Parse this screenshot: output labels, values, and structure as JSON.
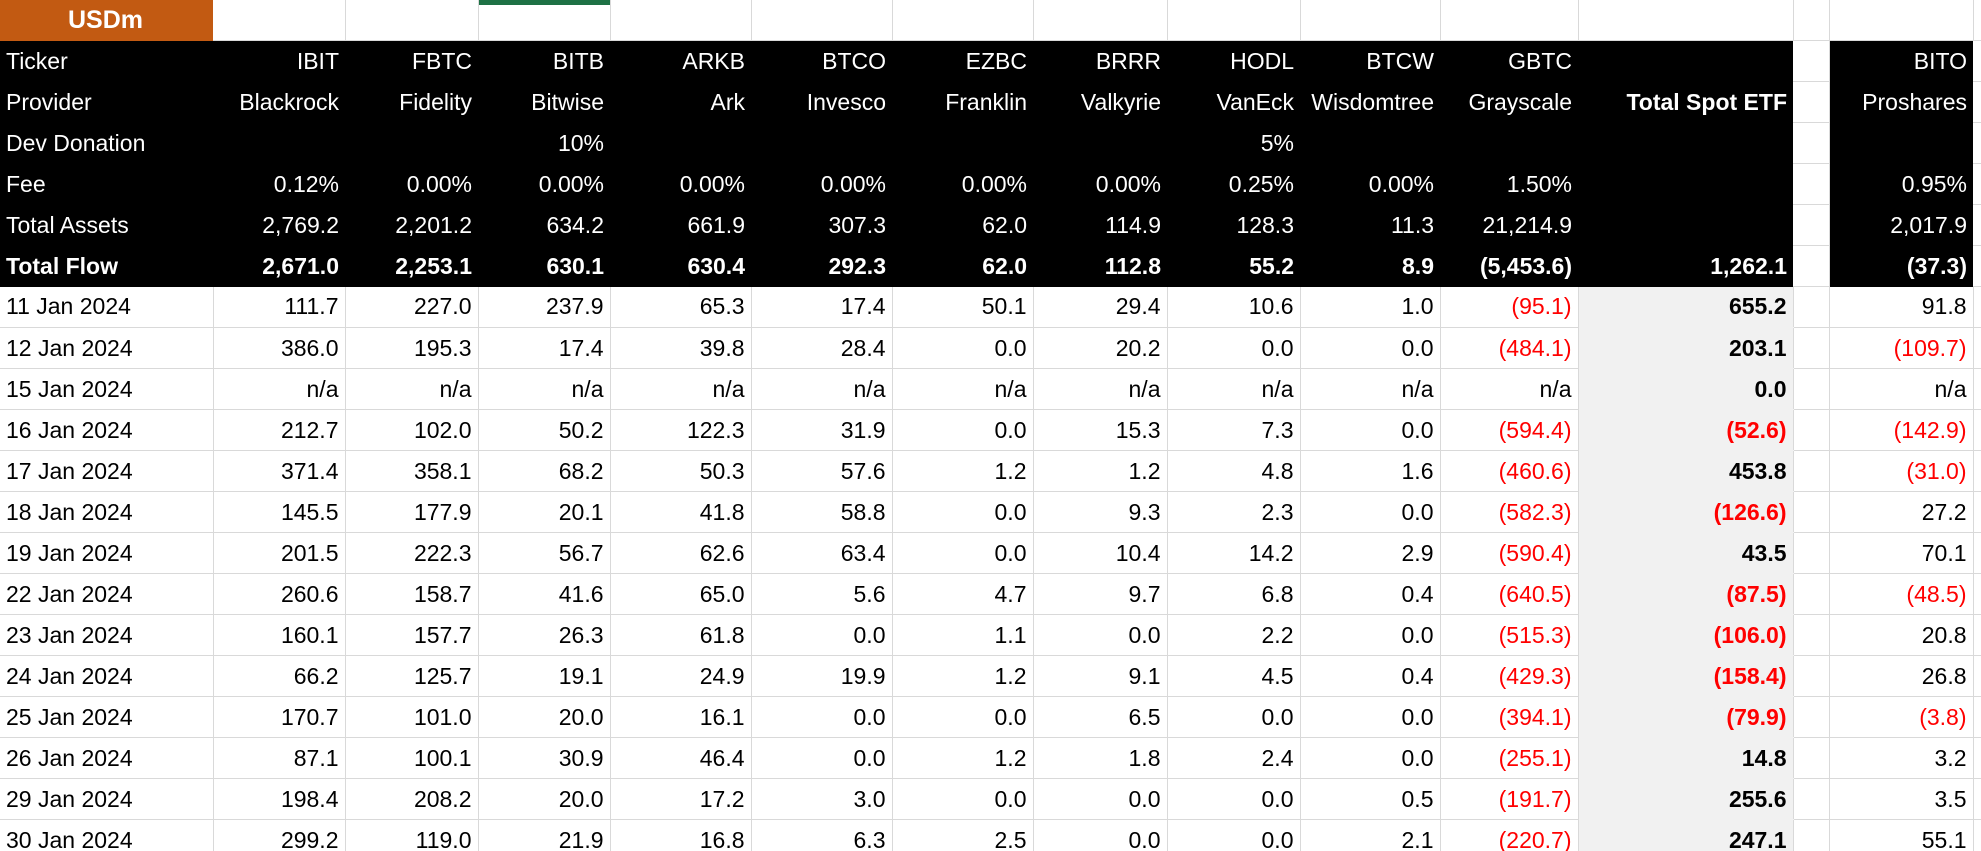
{
  "sheet": {
    "unit_label": "USDm",
    "row_labels": {
      "ticker": "Ticker",
      "provider": "Provider",
      "dev_donation": "Dev Donation",
      "fee": "Fee",
      "total_assets": "Total Assets",
      "total_flow": "Total Flow"
    },
    "columns": [
      {
        "ticker": "IBIT",
        "provider": "Blackrock",
        "dev_donation": "",
        "fee": "0.12%",
        "total_assets": "2,769.2",
        "total_flow": "2,671.0"
      },
      {
        "ticker": "FBTC",
        "provider": "Fidelity",
        "dev_donation": "",
        "fee": "0.00%",
        "total_assets": "2,201.2",
        "total_flow": "2,253.1"
      },
      {
        "ticker": "BITB",
        "provider": "Bitwise",
        "dev_donation": "10%",
        "fee": "0.00%",
        "total_assets": "634.2",
        "total_flow": "630.1"
      },
      {
        "ticker": "ARKB",
        "provider": "Ark",
        "dev_donation": "",
        "fee": "0.00%",
        "total_assets": "661.9",
        "total_flow": "630.4"
      },
      {
        "ticker": "BTCO",
        "provider": "Invesco",
        "dev_donation": "",
        "fee": "0.00%",
        "total_assets": "307.3",
        "total_flow": "292.3"
      },
      {
        "ticker": "EZBC",
        "provider": "Franklin",
        "dev_donation": "",
        "fee": "0.00%",
        "total_assets": "62.0",
        "total_flow": "62.0"
      },
      {
        "ticker": "BRRR",
        "provider": "Valkyrie",
        "dev_donation": "",
        "fee": "0.00%",
        "total_assets": "114.9",
        "total_flow": "112.8"
      },
      {
        "ticker": "HODL",
        "provider": "VanEck",
        "dev_donation": "5%",
        "fee": "0.25%",
        "total_assets": "128.3",
        "total_flow": "55.2"
      },
      {
        "ticker": "BTCW",
        "provider": "Wisdomtree",
        "dev_donation": "",
        "fee": "0.00%",
        "total_assets": "11.3",
        "total_flow": "8.9"
      },
      {
        "ticker": "GBTC",
        "provider": "Grayscale",
        "dev_donation": "",
        "fee": "1.50%",
        "total_assets": "21,214.9",
        "total_flow": "(5,453.6)"
      },
      {
        "ticker": "",
        "provider": "Total Spot ETF",
        "dev_donation": "",
        "fee": "",
        "total_assets": "",
        "total_flow": "1,262.1"
      },
      {
        "ticker": "BITO",
        "provider": "Proshares",
        "dev_donation": "",
        "fee": "0.95%",
        "total_assets": "2,017.9",
        "total_flow": "(37.3)"
      }
    ],
    "daily_rows": [
      {
        "date": "11 Jan 2024",
        "values": [
          "111.7",
          "227.0",
          "237.9",
          "65.3",
          "17.4",
          "50.1",
          "29.4",
          "10.6",
          "1.0",
          "(95.1)",
          "655.2",
          "91.8"
        ],
        "green_corner": true
      },
      {
        "date": "12 Jan 2024",
        "values": [
          "386.0",
          "195.3",
          "17.4",
          "39.8",
          "28.4",
          "0.0",
          "20.2",
          "0.0",
          "0.0",
          "(484.1)",
          "203.1",
          "(109.7)"
        ],
        "green_corner": true
      },
      {
        "date": "15 Jan 2024",
        "values": [
          "n/a",
          "n/a",
          "n/a",
          "n/a",
          "n/a",
          "n/a",
          "n/a",
          "n/a",
          "n/a",
          "n/a",
          "0.0",
          "n/a"
        ],
        "green_corner": false
      },
      {
        "date": "16 Jan 2024",
        "values": [
          "212.7",
          "102.0",
          "50.2",
          "122.3",
          "31.9",
          "0.0",
          "15.3",
          "7.3",
          "0.0",
          "(594.4)",
          "(52.6)",
          "(142.9)"
        ],
        "green_corner": false
      },
      {
        "date": "17 Jan 2024",
        "values": [
          "371.4",
          "358.1",
          "68.2",
          "50.3",
          "57.6",
          "1.2",
          "1.2",
          "4.8",
          "1.6",
          "(460.6)",
          "453.8",
          "(31.0)"
        ],
        "green_corner": false
      },
      {
        "date": "18 Jan 2024",
        "values": [
          "145.5",
          "177.9",
          "20.1",
          "41.8",
          "58.8",
          "0.0",
          "9.3",
          "2.3",
          "0.0",
          "(582.3)",
          "(126.6)",
          "27.2"
        ],
        "green_corner": false
      },
      {
        "date": "19 Jan 2024",
        "values": [
          "201.5",
          "222.3",
          "56.7",
          "62.6",
          "63.4",
          "0.0",
          "10.4",
          "14.2",
          "2.9",
          "(590.4)",
          "43.5",
          "70.1"
        ],
        "green_corner": false
      },
      {
        "date": "22 Jan 2024",
        "values": [
          "260.6",
          "158.7",
          "41.6",
          "65.0",
          "5.6",
          "4.7",
          "9.7",
          "6.8",
          "0.4",
          "(640.5)",
          "(87.5)",
          "(48.5)"
        ],
        "green_corner": false
      },
      {
        "date": "23 Jan 2024",
        "values": [
          "160.1",
          "157.7",
          "26.3",
          "61.8",
          "0.0",
          "1.1",
          "0.0",
          "2.2",
          "0.0",
          "(515.3)",
          "(106.0)",
          "20.8"
        ],
        "green_corner": false
      },
      {
        "date": "24 Jan 2024",
        "values": [
          "66.2",
          "125.7",
          "19.1",
          "24.9",
          "19.9",
          "1.2",
          "9.1",
          "4.5",
          "0.4",
          "(429.3)",
          "(158.4)",
          "26.8"
        ],
        "green_corner": false
      },
      {
        "date": "25 Jan 2024",
        "values": [
          "170.7",
          "101.0",
          "20.0",
          "16.1",
          "0.0",
          "0.0",
          "6.5",
          "0.0",
          "0.0",
          "(394.1)",
          "(79.9)",
          "(3.8)"
        ],
        "green_corner": false
      },
      {
        "date": "26 Jan 2024",
        "values": [
          "87.1",
          "100.1",
          "30.9",
          "46.4",
          "0.0",
          "1.2",
          "1.8",
          "2.4",
          "0.0",
          "(255.1)",
          "14.8",
          "3.2"
        ],
        "green_corner": false
      },
      {
        "date": "29 Jan 2024",
        "values": [
          "198.4",
          "208.2",
          "20.0",
          "17.2",
          "3.0",
          "0.0",
          "0.0",
          "0.0",
          "0.5",
          "(191.7)",
          "255.6",
          "3.5"
        ],
        "green_corner": false
      },
      {
        "date": "30 Jan 2024",
        "values": [
          "299.2",
          "119.0",
          "21.9",
          "16.8",
          "6.3",
          "2.5",
          "0.0",
          "0.0",
          "2.1",
          "(220.7)",
          "247.1",
          "55.1"
        ],
        "green_corner": false
      }
    ],
    "colors": {
      "header_bg": "#000000",
      "header_text": "#FFFFFF",
      "usdm_bg": "#C25A12",
      "negative": "#FF0000",
      "total_column_bg": "#F1F1F1",
      "gridline": "#D9D9D9",
      "green_marker": "#1E7145"
    }
  }
}
